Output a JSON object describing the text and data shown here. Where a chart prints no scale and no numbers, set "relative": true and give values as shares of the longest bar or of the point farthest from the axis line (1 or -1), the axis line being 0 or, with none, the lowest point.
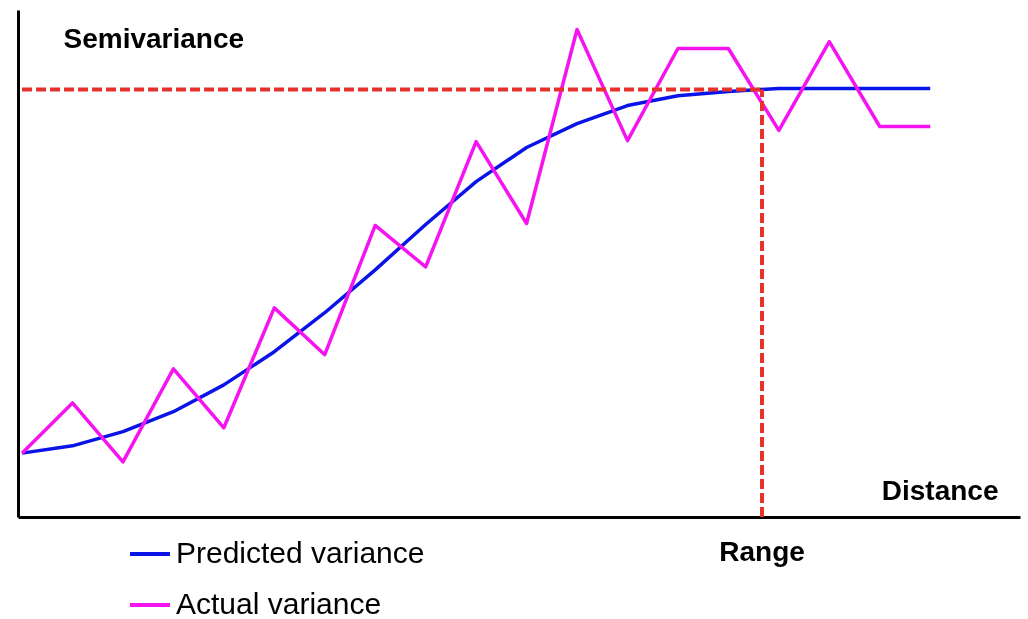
{
  "chart_data": {
    "type": "line",
    "relative": true,
    "xlabel": "Distance",
    "ylabel": "Semivariance",
    "legend": "bottom left",
    "marker": "none",
    "categories": [
      null,
      null,
      null,
      null,
      null,
      null,
      null,
      null,
      null,
      null,
      null,
      null,
      null,
      null,
      null,
      null,
      null,
      null,
      null
    ],
    "series": [
      {
        "name": "Predicted variance",
        "color": "#0a14e6",
        "values": [
          0.131,
          0.146,
          0.175,
          0.216,
          0.271,
          0.339,
          0.419,
          0.507,
          0.6,
          0.688,
          0.758,
          0.807,
          0.844,
          0.864,
          0.873,
          0.879,
          0.879,
          0.879,
          0.879
        ]
      },
      {
        "name": "Actual variance",
        "color": "#f514f0",
        "values": [
          0.131,
          0.234,
          0.113,
          0.304,
          0.183,
          0.429,
          0.333,
          0.598,
          0.513,
          0.77,
          0.602,
          1,
          0.772,
          0.961,
          0.961,
          0.793,
          0.975,
          0.801,
          0.801
        ]
      }
    ],
    "ref_lines": [
      {
        "axis": "y",
        "value": 0.877,
        "color": "#e8312a",
        "line_style": "dashed"
      },
      {
        "axis": "x",
        "label": "Range",
        "color": "#e8312a",
        "line_style": "dashed"
      }
    ]
  }
}
